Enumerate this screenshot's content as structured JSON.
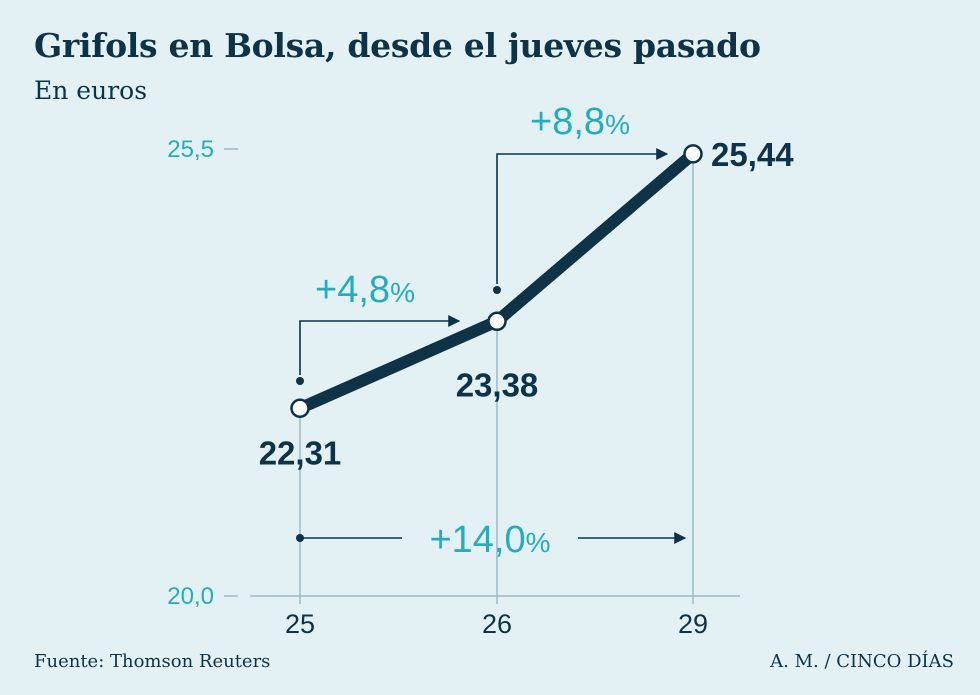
{
  "title": "Grifols en Bolsa, desde el jueves pasado",
  "subtitle": "En euros",
  "source": "Fuente: Thomson Reuters",
  "credit": "A. M. / CINCO DÍAS",
  "colors": {
    "background": "#e3f1f4",
    "line": "#0e3347",
    "accent": "#23aebe",
    "grid": "#9dbbc6"
  },
  "chart_data": {
    "type": "line",
    "title": "Grifols en Bolsa, desde el jueves pasado",
    "ylabel": "En euros",
    "xlabel": "",
    "categories": [
      "25",
      "26",
      "29"
    ],
    "series": [
      {
        "name": "Grifols",
        "values": [
          22.31,
          23.38,
          25.44
        ]
      }
    ],
    "value_labels": [
      "22,31",
      "23,38",
      "25,44"
    ],
    "ylim": [
      20.0,
      25.5
    ],
    "yticks": [
      {
        "value": 25.5,
        "label": "25,5"
      },
      {
        "value": 20.0,
        "label": "20,0"
      }
    ],
    "annotations": [
      {
        "from": "25",
        "to": "26",
        "number": "+4,8",
        "unit": "%"
      },
      {
        "from": "26",
        "to": "29",
        "number": "+8,8",
        "unit": "%"
      },
      {
        "from": "25",
        "to": "29",
        "number": "+14,0",
        "unit": "%"
      }
    ]
  }
}
